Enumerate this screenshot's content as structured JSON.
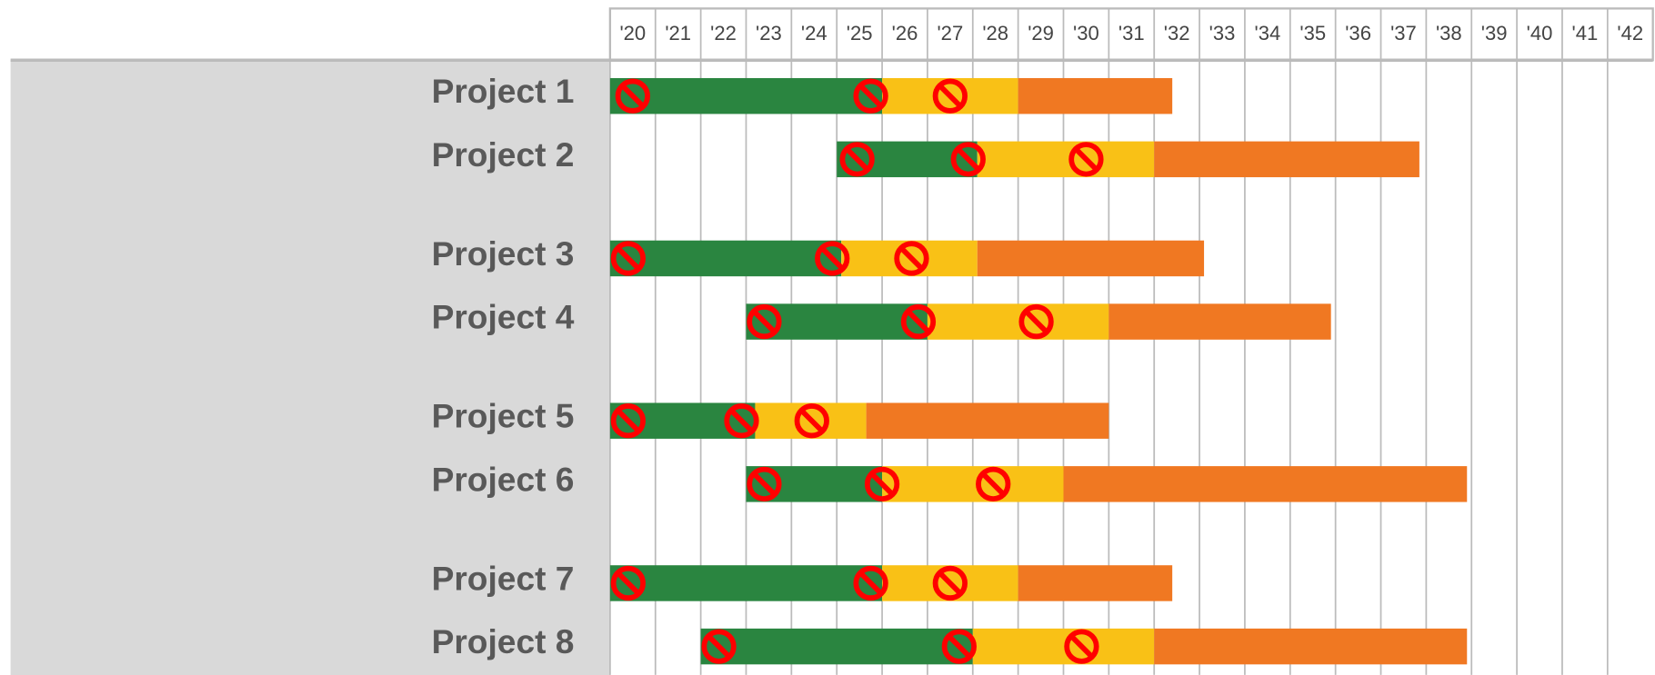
{
  "chart_data": {
    "type": "gantt",
    "xlim": [
      2020,
      2043
    ],
    "xticks": [
      {
        "value": 2020,
        "label": "'20"
      },
      {
        "value": 2021,
        "label": "'21"
      },
      {
        "value": 2022,
        "label": "'22"
      },
      {
        "value": 2023,
        "label": "'23"
      },
      {
        "value": 2024,
        "label": "'24"
      },
      {
        "value": 2025,
        "label": "'25"
      },
      {
        "value": 2026,
        "label": "'26"
      },
      {
        "value": 2027,
        "label": "'27"
      },
      {
        "value": 2028,
        "label": "'28"
      },
      {
        "value": 2029,
        "label": "'29"
      },
      {
        "value": 2030,
        "label": "'30"
      },
      {
        "value": 2031,
        "label": "'31"
      },
      {
        "value": 2032,
        "label": "'32"
      },
      {
        "value": 2033,
        "label": "'33"
      },
      {
        "value": 2034,
        "label": "'34"
      },
      {
        "value": 2035,
        "label": "'35"
      },
      {
        "value": 2036,
        "label": "'36"
      },
      {
        "value": 2037,
        "label": "'37"
      },
      {
        "value": 2038,
        "label": "'38"
      },
      {
        "value": 2039,
        "label": "'39"
      },
      {
        "value": 2040,
        "label": "'40"
      },
      {
        "value": 2041,
        "label": "'41"
      },
      {
        "value": 2042,
        "label": "'42"
      }
    ],
    "grid": true,
    "phase_colors": [
      "#2a8540",
      "#f9c116",
      "#f07822"
    ],
    "marker_color": "#ff0000",
    "tasks": [
      {
        "name": "Project 1",
        "start": 2020,
        "phases": [
          6,
          3,
          3.4
        ],
        "markers": [
          2020.5,
          2025.75,
          2027.5
        ]
      },
      {
        "name": "Project 2",
        "start": 2025,
        "phases": [
          3.1,
          3.9,
          5.85
        ],
        "markers": [
          2025.45,
          2027.9,
          2030.5
        ]
      },
      {
        "name": "Project 3",
        "start": 2020,
        "phases": [
          5.1,
          3,
          5
        ],
        "markers": [
          2020.4,
          2024.9,
          2026.65
        ]
      },
      {
        "name": "Project 4",
        "start": 2023,
        "phases": [
          4,
          4,
          4.9
        ],
        "markers": [
          2023.4,
          2026.8,
          2029.4
        ]
      },
      {
        "name": "Project 5",
        "start": 2020,
        "phases": [
          3.2,
          2.45,
          5.35
        ],
        "markers": [
          2020.4,
          2022.9,
          2024.45
        ]
      },
      {
        "name": "Project 6",
        "start": 2023,
        "phases": [
          3,
          4,
          8.9
        ],
        "markers": [
          2023.4,
          2026,
          2028.45
        ]
      },
      {
        "name": "Project 7",
        "start": 2020,
        "phases": [
          6,
          3,
          3.4
        ],
        "markers": [
          2020.4,
          2025.75,
          2027.5
        ]
      },
      {
        "name": "Project 8",
        "start": 2022,
        "phases": [
          6,
          4,
          6.9
        ],
        "markers": [
          2022.4,
          2027.7,
          2030.4
        ]
      }
    ]
  }
}
